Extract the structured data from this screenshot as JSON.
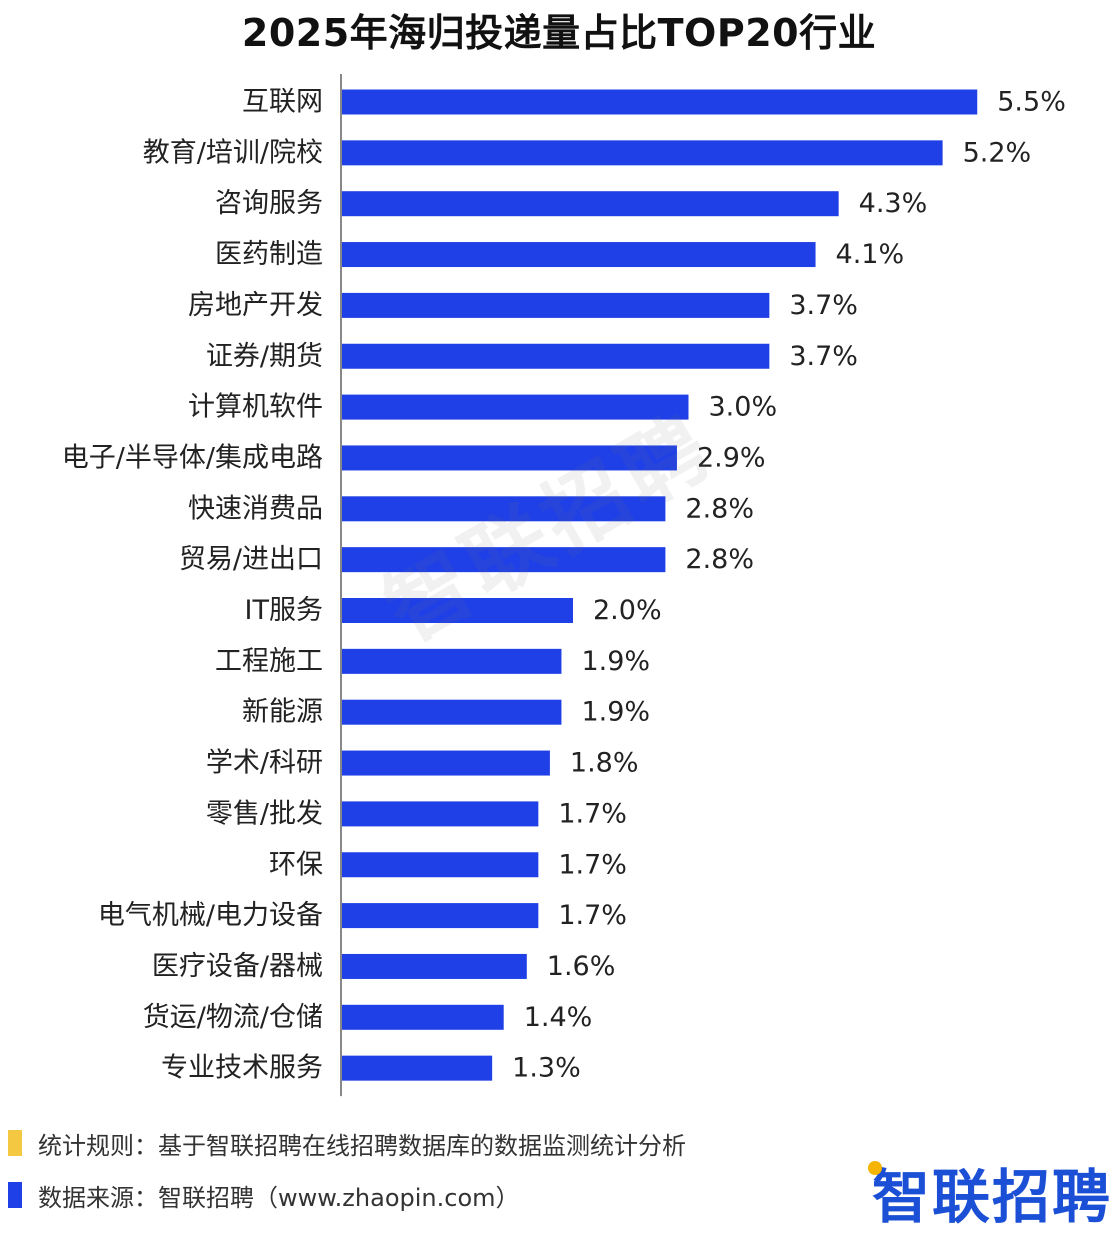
{
  "chart_data": {
    "type": "bar",
    "orientation": "horizontal",
    "title": "2025年海归投递量占比TOP20行业",
    "categories": [
      "互联网",
      "教育/培训/院校",
      "咨询服务",
      "医药制造",
      "房地产开发",
      "证券/期货",
      "计算机软件",
      "电子/半导体/集成电路",
      "快速消费品",
      "贸易/进出口",
      "IT服务",
      "工程施工",
      "新能源",
      "学术/科研",
      "零售/批发",
      "环保",
      "电气机械/电力设备",
      "医疗设备/器械",
      "货运/物流/仓储",
      "专业技术服务"
    ],
    "values": [
      5.5,
      5.2,
      4.3,
      4.1,
      3.7,
      3.7,
      3.0,
      2.9,
      2.8,
      2.8,
      2.0,
      1.9,
      1.9,
      1.8,
      1.7,
      1.7,
      1.7,
      1.6,
      1.4,
      1.3
    ],
    "value_labels": [
      "5.5%",
      "5.2%",
      "4.3%",
      "4.1%",
      "3.7%",
      "3.7%",
      "3.0%",
      "2.9%",
      "2.8%",
      "2.8%",
      "2.0%",
      "1.9%",
      "1.9%",
      "1.8%",
      "1.7%",
      "1.7%",
      "1.7%",
      "1.6%",
      "1.4%",
      "1.3%"
    ],
    "xlabel": "",
    "ylabel": "",
    "grid": false,
    "legend": "none",
    "bar_color": "#1f40e6"
  },
  "watermark": "智联招聘",
  "footer": {
    "rule_text": "统计规则：基于智联招聘在线招聘数据库的数据监测统计分析",
    "source_text": "数据来源：智联招聘（www.zhaopin.com）",
    "rule_marker_color": "#f5c842",
    "source_marker_color": "#1f40e6"
  },
  "brand": {
    "logo_text": "智联招聘",
    "logo_color": "#1a4fd6",
    "logo_dot_color": "#f5b400"
  }
}
